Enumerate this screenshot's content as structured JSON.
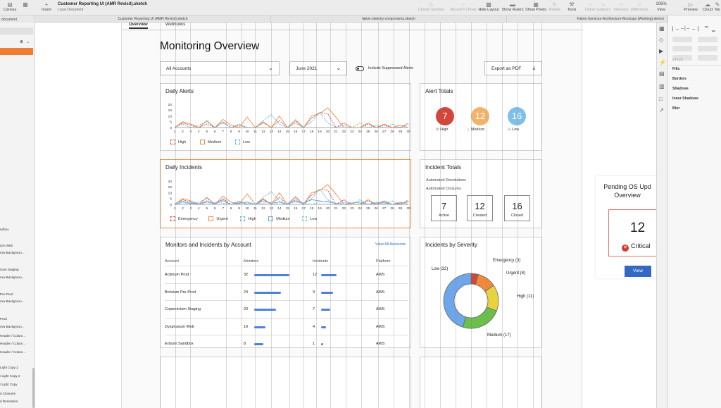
{
  "toolbar": {
    "canvas_label": "Canvas",
    "insert_label": "Insert",
    "doc_title": "Customer Reporting UI (AMR Revisit).sketch",
    "doc_subtitle": "Local Document",
    "tools": [
      "Create Symbol",
      "Round To Pixel",
      "Hide Layout",
      "Show Rulers",
      "Show Pixels",
      "Rotate",
      "Tools",
      "Union",
      "Subtract",
      "Intersect",
      "Difference"
    ],
    "zoom": "106%",
    "view_label": "View",
    "preview_label": "Preview",
    "cloud_label": "Cloud",
    "ne_label": "Ne"
  },
  "doc_tabs": [
    "Customer Reporting UI (AMR Revisit).sketch",
    "fabric-sketchy-components.sketch",
    "Fabric-Services-Architecture-Mockups (Working).sketch"
  ],
  "sidebar": {
    "top_label": "document",
    "items": [
      "ndbox",
      "ium Web",
      "row Backgroun...",
      "cium Staging",
      "row Backgroun...",
      "Pre-Prod",
      "row Backgroun...",
      "Prod",
      "row Backgroun...",
      "Header / Colum...",
      "Header / Colum...",
      "Header / Colum...",
      "Light Copy 2",
      "/ Light Copy 2",
      "/ Light Copy",
      "d Closures",
      "d Resolution"
    ]
  },
  "page_tabs": [
    "Overview",
    "Webhooks"
  ],
  "page_title": "Monitoring Overview",
  "filters": {
    "accounts": "All Accounts",
    "month": "June 2021",
    "toggle_label": "Include Suppressed Alerts",
    "export_label": "Export as PDF"
  },
  "daily_alerts": {
    "title": "Daily Alerts",
    "legend": [
      "High",
      "Medium",
      "Low"
    ]
  },
  "daily_incidents": {
    "title": "Daily Incidents",
    "legend": [
      "Emergency",
      "Urgent",
      "High",
      "Medium",
      "Low"
    ]
  },
  "alert_totals": {
    "title": "Alert Totals",
    "items": [
      {
        "value": "7",
        "label": "High",
        "color": "#d4463b"
      },
      {
        "value": "12",
        "label": "Medium",
        "color": "#f2b46b"
      },
      {
        "value": "16",
        "label": "Low",
        "color": "#7ec0e8"
      }
    ]
  },
  "incident_totals": {
    "title": "Incident Totals",
    "lines": [
      "Automated Resolutions",
      "Automated Closures"
    ],
    "boxes": [
      {
        "value": "7",
        "label": "Active"
      },
      {
        "value": "12",
        "label": "Created"
      },
      {
        "value": "16",
        "label": "Closed"
      }
    ]
  },
  "accounts_table": {
    "title": "Monitors and Incidents by Account",
    "view_all": "View All Accounts",
    "headers": [
      "Account",
      "Monitors",
      "Incidents",
      "Platform"
    ],
    "rows": [
      {
        "account": "Actinium Prod",
        "monitors": "32",
        "incidents": "12",
        "platform": "AWS"
      },
      {
        "account": "Bohrium Pre-Prod",
        "monitors": "24",
        "incidents": "9",
        "platform": "AWS"
      },
      {
        "account": "Copernicium Staging",
        "monitors": "20",
        "incidents": "7",
        "platform": "AWS"
      },
      {
        "account": "Dysprosium Web",
        "monitors": "10",
        "incidents": "4",
        "platform": "AWS"
      },
      {
        "account": "Erbium Sandbox",
        "monitors": "8",
        "incidents": "1",
        "platform": "AWS"
      }
    ]
  },
  "severity": {
    "title": "Incidents by Severity",
    "labels": [
      "Emergency (3)",
      "Urgent (8)",
      "High (11)",
      "Medium (17)",
      "Low (32)"
    ]
  },
  "floating_panel": {
    "title": "Pending OS Upd Overview",
    "title_line1": "Pending OS Upd",
    "title_line2": "Overview",
    "value": "12",
    "status": "Critical",
    "button": "View"
  },
  "inspector": {
    "style_label": "STYLE",
    "sections": [
      "Fills",
      "Borders",
      "Shadows",
      "Inner Shadows",
      "Blur"
    ]
  },
  "chart_data": [
    {
      "type": "line",
      "title": "Daily Alerts",
      "x": [
        1,
        2,
        3,
        4,
        5,
        6,
        7,
        8,
        9,
        10,
        11,
        12,
        13,
        14,
        15,
        16,
        17,
        18,
        19,
        20,
        21,
        22,
        23,
        24,
        25,
        26,
        27,
        28,
        29,
        30
      ],
      "x_ticks": [
        "1",
        "2",
        "3",
        "4",
        "5",
        "6",
        "7",
        "8",
        "9",
        "10",
        "11",
        "12",
        "13",
        "14",
        "15",
        "16",
        "17",
        "18",
        "19",
        "20",
        "21",
        "22",
        "23",
        "24",
        "25",
        "26",
        "27",
        "28",
        "29",
        "30"
      ],
      "ylim": [
        0,
        20
      ],
      "y_ticks": [
        0,
        5,
        10,
        15,
        20
      ],
      "series": [
        {
          "name": "High",
          "color": "#d4463b",
          "values": [
            0,
            4,
            2,
            0,
            3,
            0,
            5,
            0,
            2,
            0,
            0,
            4,
            0,
            6,
            0,
            4,
            0,
            8,
            13,
            12,
            0,
            4,
            0,
            0,
            3,
            0,
            2,
            0,
            0,
            3
          ]
        },
        {
          "name": "Medium",
          "color": "#ef8a3c",
          "values": [
            0,
            5,
            3,
            0,
            6,
            0,
            7,
            2,
            0,
            9,
            0,
            5,
            0,
            10,
            0,
            6,
            0,
            10,
            12,
            17,
            9,
            0,
            0,
            0,
            4,
            0,
            3,
            0,
            2,
            0
          ]
        },
        {
          "name": "Low",
          "color": "#5db3e4",
          "values": [
            0,
            3,
            0,
            2,
            5,
            0,
            4,
            0,
            3,
            0,
            0,
            6,
            11,
            3,
            0,
            7,
            0,
            5,
            13,
            4,
            0,
            2,
            0,
            4,
            0,
            2,
            0,
            3,
            0,
            4
          ]
        }
      ]
    },
    {
      "type": "line",
      "title": "Daily Incidents",
      "x": [
        1,
        2,
        3,
        4,
        5,
        6,
        7,
        8,
        9,
        10,
        11,
        12,
        13,
        14,
        15,
        16,
        17,
        18,
        19,
        20,
        21,
        22,
        23,
        24,
        25,
        26,
        27,
        28,
        29,
        30
      ],
      "x_ticks": [
        "1",
        "2",
        "3",
        "4",
        "5",
        "6",
        "7",
        "8",
        "9",
        "10",
        "11",
        "12",
        "13",
        "14",
        "15",
        "16",
        "17",
        "18",
        "19",
        "20",
        "21",
        "22",
        "23",
        "24",
        "25",
        "26",
        "27",
        "28",
        "29",
        "30"
      ],
      "ylim": [
        0,
        20
      ],
      "y_ticks": [
        0,
        5,
        10,
        15,
        20
      ],
      "series": [
        {
          "name": "Emergency",
          "color": "#d4463b",
          "values": [
            0,
            4,
            2,
            0,
            3,
            0,
            5,
            0,
            2,
            0,
            0,
            4,
            0,
            6,
            0,
            4,
            0,
            8,
            13,
            12,
            0,
            4,
            0,
            0,
            3,
            0,
            2,
            0,
            0,
            3
          ]
        },
        {
          "name": "Urgent",
          "color": "#ef8a3c",
          "values": [
            0,
            5,
            3,
            0,
            6,
            0,
            7,
            2,
            0,
            9,
            0,
            5,
            0,
            10,
            0,
            6,
            0,
            10,
            12,
            17,
            9,
            0,
            0,
            0,
            4,
            0,
            3,
            0,
            2,
            0
          ]
        },
        {
          "name": "High",
          "color": "#5db3e4",
          "values": [
            0,
            3,
            0,
            2,
            5,
            0,
            4,
            0,
            3,
            0,
            0,
            6,
            11,
            3,
            0,
            7,
            0,
            5,
            13,
            4,
            0,
            2,
            0,
            4,
            0,
            2,
            0,
            3,
            0,
            4
          ]
        },
        {
          "name": "Medium",
          "color": "#6ba2d8",
          "values": [
            0,
            2,
            1,
            0,
            2,
            1,
            3,
            0,
            1,
            2,
            0,
            3,
            1,
            2,
            0,
            3,
            1,
            4,
            3,
            2,
            1,
            0,
            1,
            2,
            0,
            1,
            2,
            0,
            1,
            2
          ]
        },
        {
          "name": "Low",
          "color": "#7cc6ea",
          "values": [
            1,
            0,
            2,
            1,
            0,
            2,
            1,
            0,
            2,
            1,
            0,
            1,
            2,
            0,
            1,
            2,
            1,
            0,
            2,
            3,
            1,
            0,
            2,
            1,
            0,
            2,
            1,
            0,
            1,
            2
          ]
        }
      ]
    },
    {
      "type": "bar",
      "title": "Monitors and Incidents by Account",
      "categories": [
        "Actinium Prod",
        "Bohrium Pre-Prod",
        "Copernicium Staging",
        "Dysprosium Web",
        "Erbium Sandbox"
      ],
      "series": [
        {
          "name": "Monitors",
          "values": [
            32,
            24,
            20,
            10,
            8
          ]
        },
        {
          "name": "Incidents",
          "values": [
            12,
            9,
            7,
            4,
            1
          ]
        }
      ]
    },
    {
      "type": "pie",
      "title": "Incidents by Severity",
      "categories": [
        "Emergency",
        "Urgent",
        "High",
        "Medium",
        "Low"
      ],
      "values": [
        3,
        8,
        11,
        17,
        32
      ],
      "colors": [
        "#d4463b",
        "#ef8a3c",
        "#e9d23f",
        "#6cc04a",
        "#6ea6ea"
      ]
    }
  ]
}
